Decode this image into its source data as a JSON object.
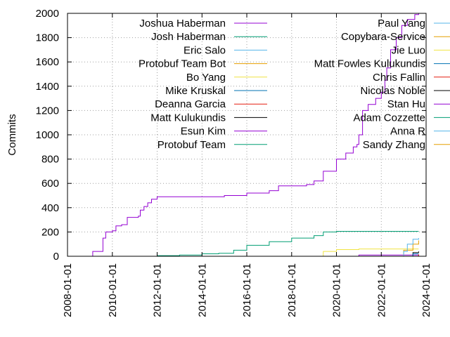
{
  "chart_data": {
    "type": "line",
    "ylabel": "Commits",
    "ylim": [
      0,
      2000
    ],
    "y_ticks": [
      0,
      200,
      400,
      600,
      800,
      1000,
      1200,
      1400,
      1600,
      1800,
      2000
    ],
    "xlim": [
      "2008-01-01",
      "2024-01-01"
    ],
    "x_ticks": [
      "2008-01-01",
      "2010-01-01",
      "2012-01-01",
      "2014-01-01",
      "2016-01-01",
      "2018-01-01",
      "2020-01-01",
      "2022-01-01",
      "2024-01-01"
    ],
    "grid": true,
    "legend_placement": "top-inside-two-columns",
    "series": [
      {
        "name": "Joshua Haberman",
        "color": "#9400d3",
        "x": [
          "2009-02-01",
          "2009-02-15",
          "2009-06-01",
          "2009-08-01",
          "2009-09-15",
          "2010-01-01",
          "2010-03-01",
          "2010-06-01",
          "2010-09-01",
          "2011-03-01",
          "2011-04-01",
          "2011-06-01",
          "2011-08-01",
          "2011-10-01",
          "2012-01-01",
          "2013-01-01",
          "2014-01-01",
          "2014-10-01",
          "2015-01-01",
          "2016-01-01",
          "2017-01-01",
          "2017-06-01",
          "2018-01-01",
          "2018-09-01",
          "2019-01-01",
          "2019-06-01",
          "2020-01-01",
          "2020-06-01",
          "2020-10-01",
          "2020-12-01",
          "2021-01-01",
          "2021-03-01",
          "2021-06-01",
          "2021-10-01",
          "2022-01-01",
          "2022-03-01",
          "2022-04-01",
          "2022-06-01",
          "2022-09-01",
          "2022-12-01",
          "2023-03-01",
          "2023-07-01",
          "2023-09-01"
        ],
        "values": [
          0,
          40,
          40,
          150,
          200,
          210,
          250,
          260,
          320,
          330,
          380,
          410,
          440,
          470,
          490,
          490,
          490,
          490,
          500,
          520,
          540,
          580,
          580,
          590,
          620,
          700,
          800,
          850,
          900,
          920,
          1000,
          1200,
          1250,
          1300,
          1350,
          1450,
          1550,
          1700,
          1800,
          1900,
          1950,
          1990,
          2000
        ]
      },
      {
        "name": "Josh Haberman",
        "color": "#009e73",
        "x": [
          "2011-01-01",
          "2012-01-01",
          "2013-01-01",
          "2014-01-01",
          "2014-10-01",
          "2015-06-01",
          "2016-01-01",
          "2017-01-01",
          "2018-01-01",
          "2019-01-01",
          "2019-06-01",
          "2020-01-01",
          "2021-01-01",
          "2023-09-01"
        ],
        "values": [
          0,
          5,
          10,
          20,
          25,
          50,
          90,
          120,
          150,
          170,
          200,
          205,
          205,
          205
        ]
      },
      {
        "name": "Eric Salo",
        "color": "#56b4e9",
        "x": [
          "2022-12-01",
          "2023-01-01",
          "2023-03-01",
          "2023-06-01",
          "2023-09-01"
        ],
        "values": [
          0,
          40,
          100,
          140,
          150
        ]
      },
      {
        "name": "Protobuf Team Bot",
        "color": "#e69f00",
        "x": [
          "2022-06-01",
          "2023-01-01",
          "2023-06-01",
          "2023-09-01"
        ],
        "values": [
          0,
          50,
          100,
          130
        ]
      },
      {
        "name": "Bo Yang",
        "color": "#f0e442",
        "x": [
          "2018-06-01",
          "2019-06-01",
          "2020-01-01",
          "2021-01-01",
          "2023-09-01"
        ],
        "values": [
          0,
          40,
          55,
          60,
          60
        ]
      },
      {
        "name": "Mike Kruskal",
        "color": "#0072b2",
        "x": [
          "2022-06-01",
          "2023-06-01",
          "2023-09-01"
        ],
        "values": [
          0,
          20,
          20
        ]
      },
      {
        "name": "Deanna Garcia",
        "color": "#e51e10",
        "x": [
          "2022-06-01",
          "2023-09-01"
        ],
        "values": [
          0,
          15
        ]
      },
      {
        "name": "Matt Kulukundis",
        "color": "#000000",
        "x": [
          "2022-06-01",
          "2023-06-01",
          "2023-09-01"
        ],
        "values": [
          0,
          30,
          40
        ]
      },
      {
        "name": "Esun Kim",
        "color": "#9400d3",
        "x": [
          "2020-01-01",
          "2021-01-01",
          "2023-09-01"
        ],
        "values": [
          0,
          10,
          12
        ]
      },
      {
        "name": "Protobuf Team",
        "color": "#009e73",
        "x": [
          "2021-06-01",
          "2023-09-01"
        ],
        "values": [
          0,
          8
        ]
      },
      {
        "name": "Paul Yang",
        "color": "#56b4e9",
        "x": [
          "2019-06-01",
          "2023-09-01"
        ],
        "values": [
          0,
          6
        ]
      },
      {
        "name": "Copybara-Service",
        "color": "#e69f00",
        "x": [
          "2021-06-01",
          "2023-09-01"
        ],
        "values": [
          0,
          6
        ]
      },
      {
        "name": "Jie Luo",
        "color": "#f0e442",
        "x": [
          "2019-06-01",
          "2023-09-01"
        ],
        "values": [
          0,
          5
        ]
      },
      {
        "name": "Matt Fowles Kulukundis",
        "color": "#0072b2",
        "x": [
          "2022-06-01",
          "2023-09-01"
        ],
        "values": [
          0,
          5
        ]
      },
      {
        "name": "Chris Fallin",
        "color": "#e51e10",
        "x": [
          "2016-06-01",
          "2023-09-01"
        ],
        "values": [
          0,
          4
        ]
      },
      {
        "name": "Nicolas Noble",
        "color": "#000000",
        "x": [
          "2016-06-01",
          "2023-09-01"
        ],
        "values": [
          0,
          3
        ]
      },
      {
        "name": "Stan Hu",
        "color": "#9400d3",
        "x": [
          "2022-06-01",
          "2023-09-01"
        ],
        "values": [
          0,
          3
        ]
      },
      {
        "name": "Adam Cozzette",
        "color": "#009e73",
        "x": [
          "2021-06-01",
          "2023-09-01"
        ],
        "values": [
          0,
          2
        ]
      },
      {
        "name": "Anna R",
        "color": "#56b4e9",
        "x": [
          "2021-06-01",
          "2023-09-01"
        ],
        "values": [
          0,
          2
        ]
      },
      {
        "name": "Sandy Zhang",
        "color": "#e69f00",
        "x": [
          "2022-06-01",
          "2023-09-01"
        ],
        "values": [
          0,
          2
        ]
      }
    ]
  }
}
